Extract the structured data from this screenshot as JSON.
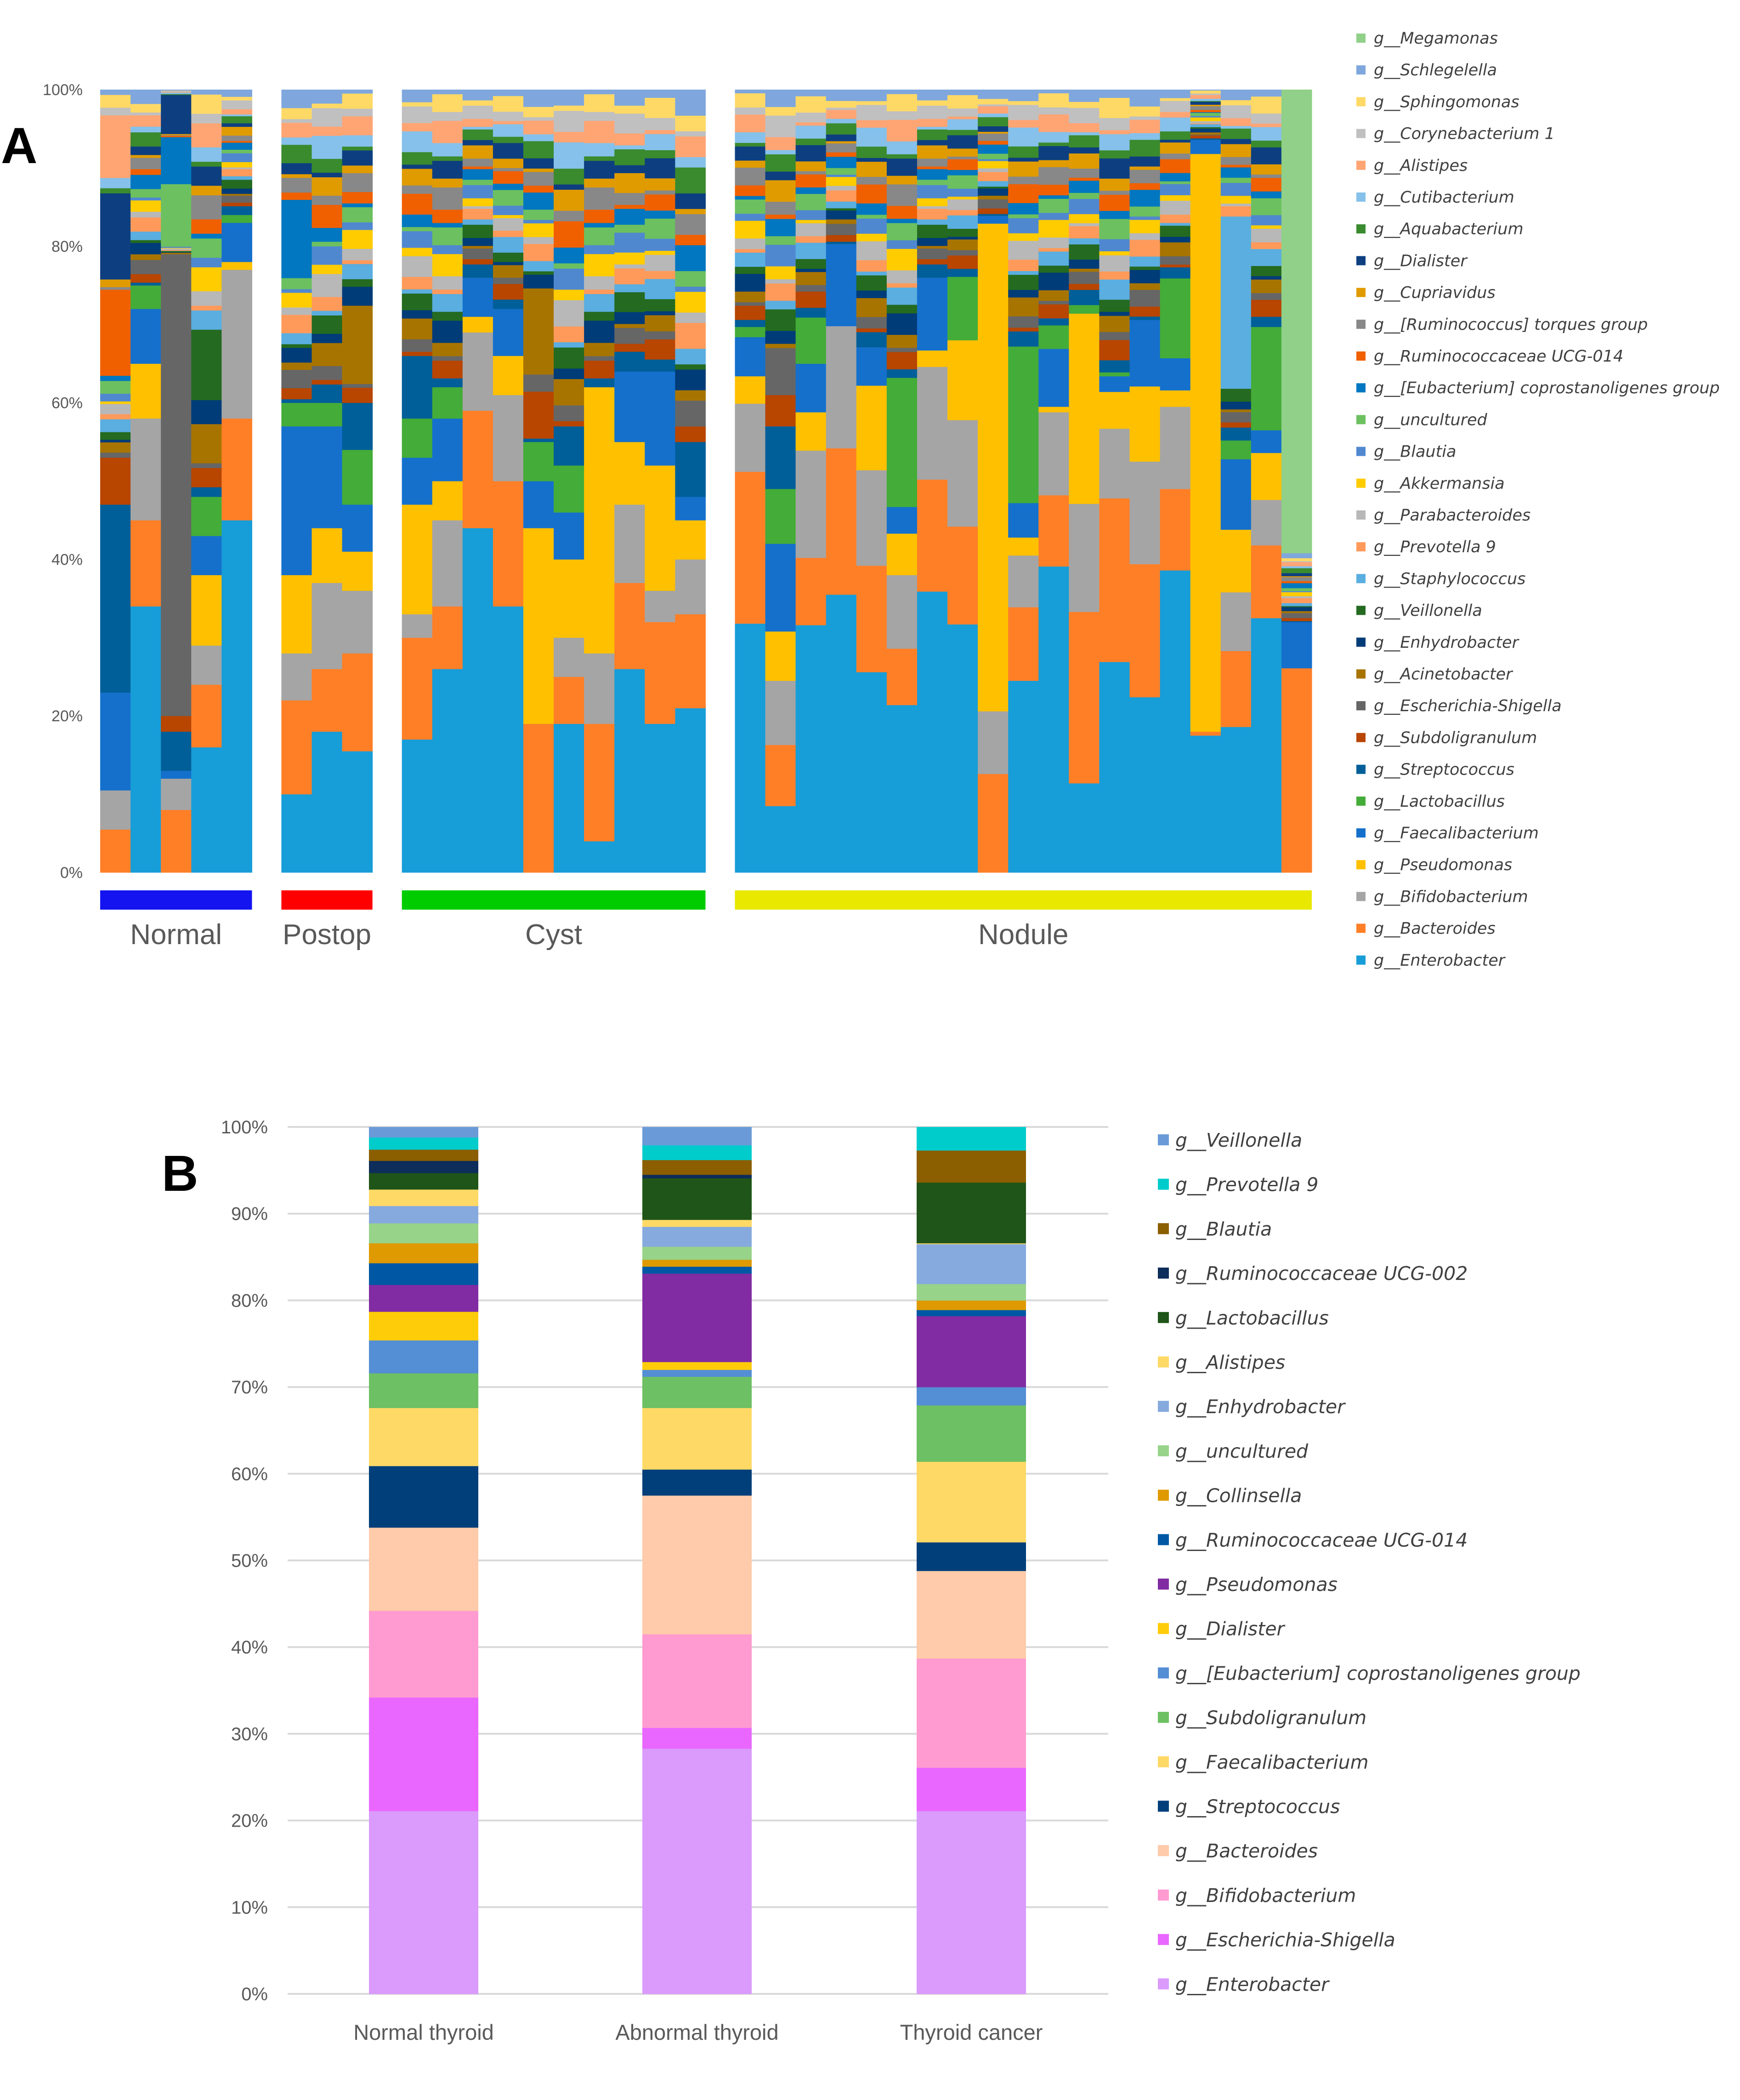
{
  "chart_data": [
    {
      "panel_label": "A",
      "type": "bar",
      "stacked": true,
      "title": "",
      "xlabel": "",
      "ylabel": "",
      "ylim": [
        0,
        100
      ],
      "yticks": [
        "0%",
        "20%",
        "40%",
        "60%",
        "80%",
        "100%"
      ],
      "grid": false,
      "legend_position": "right",
      "note": "main = cumulative top (%) of the six bottom genera; extra = segment (%) by genus index; remainder is made up of minor genera",
      "genera": [
        "g__Enterobacter",
        "g__Bacteroides",
        "g__Bifidobacterium",
        "g__Pseudomonas",
        "g__Faecalibacterium",
        "g__Lactobacillus",
        "g__Streptococcus",
        "g__Subdoligranulum",
        "g__Escherichia-Shigella",
        "g__Acinetobacter",
        "g__Enhydrobacter",
        "g__Veillonella",
        "g__Staphylococcus",
        "g__Prevotella 9",
        "g__Parabacteroides",
        "g__Akkermansia",
        "g__Blautia",
        "g__uncultured",
        "g__[Eubacterium] coprostanoligenes group",
        "g__Ruminococcaceae UCG-014",
        "g__[Ruminococcus] torques group",
        "g__Cupriavidus",
        "g__Dialister",
        "g__Aquabacterium",
        "g__Cutibacterium",
        "g__Alistipes",
        "g__Corynebacterium 1",
        "g__Sphingomonas",
        "g__Schlegelella",
        "g__Megamonas"
      ],
      "colors": [
        "#179dd8",
        "#ff7f27",
        "#a5a5a5",
        "#ffc000",
        "#1570cc",
        "#44ac38",
        "#005f99",
        "#b84500",
        "#666666",
        "#a87400",
        "#003c78",
        "#246a20",
        "#5aaee0",
        "#ff9a5a",
        "#b8b8b8",
        "#ffcc00",
        "#5088d0",
        "#6cc060",
        "#0077c0",
        "#f06000",
        "#888888",
        "#e09b00",
        "#0d3f80",
        "#3a8a2e",
        "#85c1ea",
        "#ffa574",
        "#c0c0c0",
        "#ffd966",
        "#7fa7dd",
        "#90d088"
      ],
      "groups": [
        {
          "name": "Normal",
          "color": "#1414f0",
          "samples": [
            {
              "main": [
                0,
                5.5,
                10.5,
                10.5,
                23,
                23
              ],
              "extra": {
                "6": 24,
                "7": 6,
                "19": 11,
                "22": 11,
                "25": 8
              }
            },
            {
              "main": [
                34,
                45,
                58,
                65,
                72,
                75
              ]
            },
            {
              "main": [
                0,
                8,
                12,
                12,
                13,
                13
              ],
              "extra": {
                "6": 5,
                "7": 2,
                "8": 59,
                "17": 8,
                "18": 6,
                "22": 5
              }
            },
            {
              "main": [
                16,
                24,
                29,
                38,
                43,
                48
              ],
              "extra": {
                "9": 5,
                "11": 9
              }
            },
            {
              "main": [
                45,
                58,
                77,
                78,
                83,
                84
              ]
            }
          ]
        },
        {
          "name": "Postop",
          "color": "#ff0000",
          "samples": [
            {
              "main": [
                10,
                22,
                28,
                38,
                57,
                60
              ],
              "extra": {
                "18": 10
              }
            },
            {
              "main": [
                18,
                26,
                37,
                44,
                57,
                60
              ]
            },
            {
              "main": [
                15.5,
                28,
                36,
                41,
                47,
                54
              ],
              "extra": {
                "6": 6,
                "9": 10
              }
            }
          ]
        },
        {
          "name": "Cyst",
          "color": "#00cc00",
          "samples": [
            {
              "main": [
                17,
                30,
                33,
                47,
                53,
                58
              ],
              "extra": {
                "6": 8
              }
            },
            {
              "main": [
                26,
                34,
                45,
                50,
                58,
                62
              ]
            },
            {
              "main": [
                44,
                59,
                69,
                71,
                76,
                76
              ]
            },
            {
              "main": [
                34,
                50,
                61,
                66,
                72,
                72
              ]
            },
            {
              "main": [
                0,
                19,
                19,
                44,
                50,
                55
              ],
              "extra": {
                "7": 6,
                "9": 11
              }
            },
            {
              "main": [
                19,
                25,
                30,
                40,
                46,
                52
              ],
              "extra": {
                "6": 5
              }
            },
            {
              "main": [
                4,
                19,
                28,
                62,
                62,
                62
              ]
            },
            {
              "main": [
                26,
                37,
                47,
                55,
                64,
                64
              ]
            },
            {
              "main": [
                19,
                32,
                36,
                52,
                64,
                64
              ]
            },
            {
              "main": [
                21,
                33,
                40,
                45,
                48,
                48
              ],
              "extra": {
                "6": 7
              }
            }
          ]
        },
        {
          "name": "Nodule",
          "color": "#e8e800",
          "samples": [
            {
              "main": [
                31.8,
                51.2,
                59.9,
                63.4,
                68.4,
                69.7
              ]
            },
            {
              "main": [
                8.5,
                16.3,
                24.5,
                30.8,
                42,
                49
              ],
              "extra": {
                "6": 8,
                "7": 4,
                "8": 6
              }
            },
            {
              "main": [
                31.6,
                40.2,
                53.9,
                58.8,
                65,
                70.9
              ]
            },
            {
              "main": [
                35.5,
                54.2,
                69.8,
                69.8,
                80.3,
                80.3
              ]
            },
            {
              "main": [
                25.6,
                39.2,
                51.4,
                62.2,
                67.1,
                67.1
              ]
            },
            {
              "main": [
                21.4,
                28.6,
                38,
                43.3,
                46.7,
                63.2
              ]
            },
            {
              "main": [
                35.9,
                50.2,
                64.6,
                66.7,
                76,
                76
              ]
            },
            {
              "main": [
                31.7,
                44.2,
                57.8,
                68,
                68,
                76.1
              ]
            },
            {
              "main": [
                0,
                12.6,
                20.6,
                82.9,
                83.9,
                83.9
              ]
            },
            {
              "main": [
                24.5,
                33.9,
                40.5,
                42.8,
                47.2,
                67.2
              ]
            },
            {
              "main": [
                39.1,
                48.2,
                58.8,
                59.5,
                66.9,
                69.9
              ]
            },
            {
              "main": [
                11.4,
                33.3,
                47.1,
                71.4,
                71.4,
                72.5
              ]
            },
            {
              "main": [
                26.9,
                47.8,
                56.7,
                61.4,
                63.4,
                63.9
              ]
            },
            {
              "main": [
                22.4,
                39.4,
                52.5,
                62.1,
                70.6,
                70.6
              ]
            },
            {
              "main": [
                38.6,
                49,
                59.5,
                61.6,
                65.7,
                75.9
              ]
            },
            {
              "main": [
                17.5,
                18,
                18,
                91.8,
                93.6,
                93.6
              ]
            },
            {
              "main": [
                18.6,
                28.3,
                35.8,
                43.8,
                52.8,
                55.2
              ],
              "extra": {
                "12": 22
              }
            },
            {
              "main": [
                32.5,
                41.8,
                47.6,
                53.6,
                56.5,
                69.7
              ]
            },
            {
              "main": [
                0,
                26.1,
                26.1,
                26.1,
                32,
                32
              ],
              "extra": {
                "29": 59.2
              }
            }
          ]
        }
      ]
    },
    {
      "panel_label": "B",
      "type": "bar",
      "stacked": true,
      "title": "",
      "xlabel": "",
      "ylabel": "",
      "ylim": [
        0,
        100
      ],
      "yticks": [
        "0%",
        "10%",
        "20%",
        "30%",
        "40%",
        "50%",
        "60%",
        "70%",
        "80%",
        "90%",
        "100%"
      ],
      "grid": true,
      "legend_position": "right",
      "categories": [
        "Normal thyroid",
        "Abnormal thyroid",
        "Thyroid cancer"
      ],
      "series": [
        {
          "name": "g__Enterobacter",
          "color": "#da9bfc",
          "values": [
            21.1,
            28.3,
            21.1
          ]
        },
        {
          "name": "g__Escherichia-Shigella",
          "color": "#e967ff",
          "values": [
            13.1,
            2.4,
            5.0
          ]
        },
        {
          "name": "g__Bifidobacterium",
          "color": "#ff9bd0",
          "values": [
            10.0,
            10.8,
            12.6
          ]
        },
        {
          "name": "g__Bacteroides",
          "color": "#ffcbaa",
          "values": [
            9.6,
            16.0,
            10.1
          ]
        },
        {
          "name": "g__Streptococcus",
          "color": "#003f7a",
          "values": [
            7.1,
            3.0,
            3.3
          ]
        },
        {
          "name": "g__Faecalibacterium",
          "color": "#ffd966",
          "values": [
            6.7,
            7.1,
            9.3
          ]
        },
        {
          "name": "g__Subdoligranulum",
          "color": "#6dc063",
          "values": [
            4.0,
            3.6,
            6.5
          ]
        },
        {
          "name": "g__[Eubacterium] coprostanoligenes group",
          "color": "#548ed4",
          "values": [
            3.8,
            0.8,
            2.1
          ]
        },
        {
          "name": "g__Dialister",
          "color": "#ffcc0a",
          "values": [
            3.3,
            0.9,
            0.0
          ]
        },
        {
          "name": "g__Pseudomonas",
          "color": "#812ca3",
          "values": [
            3.1,
            10.2,
            8.2
          ]
        },
        {
          "name": "g__Ruminococcaceae UCG-014",
          "color": "#0058a5",
          "values": [
            2.5,
            0.8,
            0.7
          ]
        },
        {
          "name": "g__Collinsella",
          "color": "#de9a00",
          "values": [
            2.3,
            0.8,
            1.1
          ]
        },
        {
          "name": "g__uncultured",
          "color": "#98d38a",
          "values": [
            2.3,
            1.5,
            1.9
          ]
        },
        {
          "name": "g__Enhydrobacter",
          "color": "#86aade",
          "values": [
            2.0,
            2.3,
            4.6
          ]
        },
        {
          "name": "g__Alistipes",
          "color": "#ffd966",
          "values": [
            1.9,
            0.8,
            0.1
          ]
        },
        {
          "name": "g__Lactobacillus",
          "color": "#1f5518",
          "values": [
            1.9,
            4.8,
            7.0
          ]
        },
        {
          "name": "g__Ruminococcaceae UCG-002",
          "color": "#0d2d5a",
          "values": [
            1.4,
            0.4,
            0.0
          ]
        },
        {
          "name": "g__Blautia",
          "color": "#8b5e00",
          "values": [
            1.3,
            1.7,
            3.7
          ]
        },
        {
          "name": "g__Prevotella 9",
          "color": "#00cccc",
          "values": [
            1.4,
            1.7,
            2.7
          ]
        },
        {
          "name": "g__Veillonella",
          "color": "#6a9bd8",
          "values": [
            1.2,
            2.1,
            0.0
          ]
        }
      ]
    }
  ]
}
